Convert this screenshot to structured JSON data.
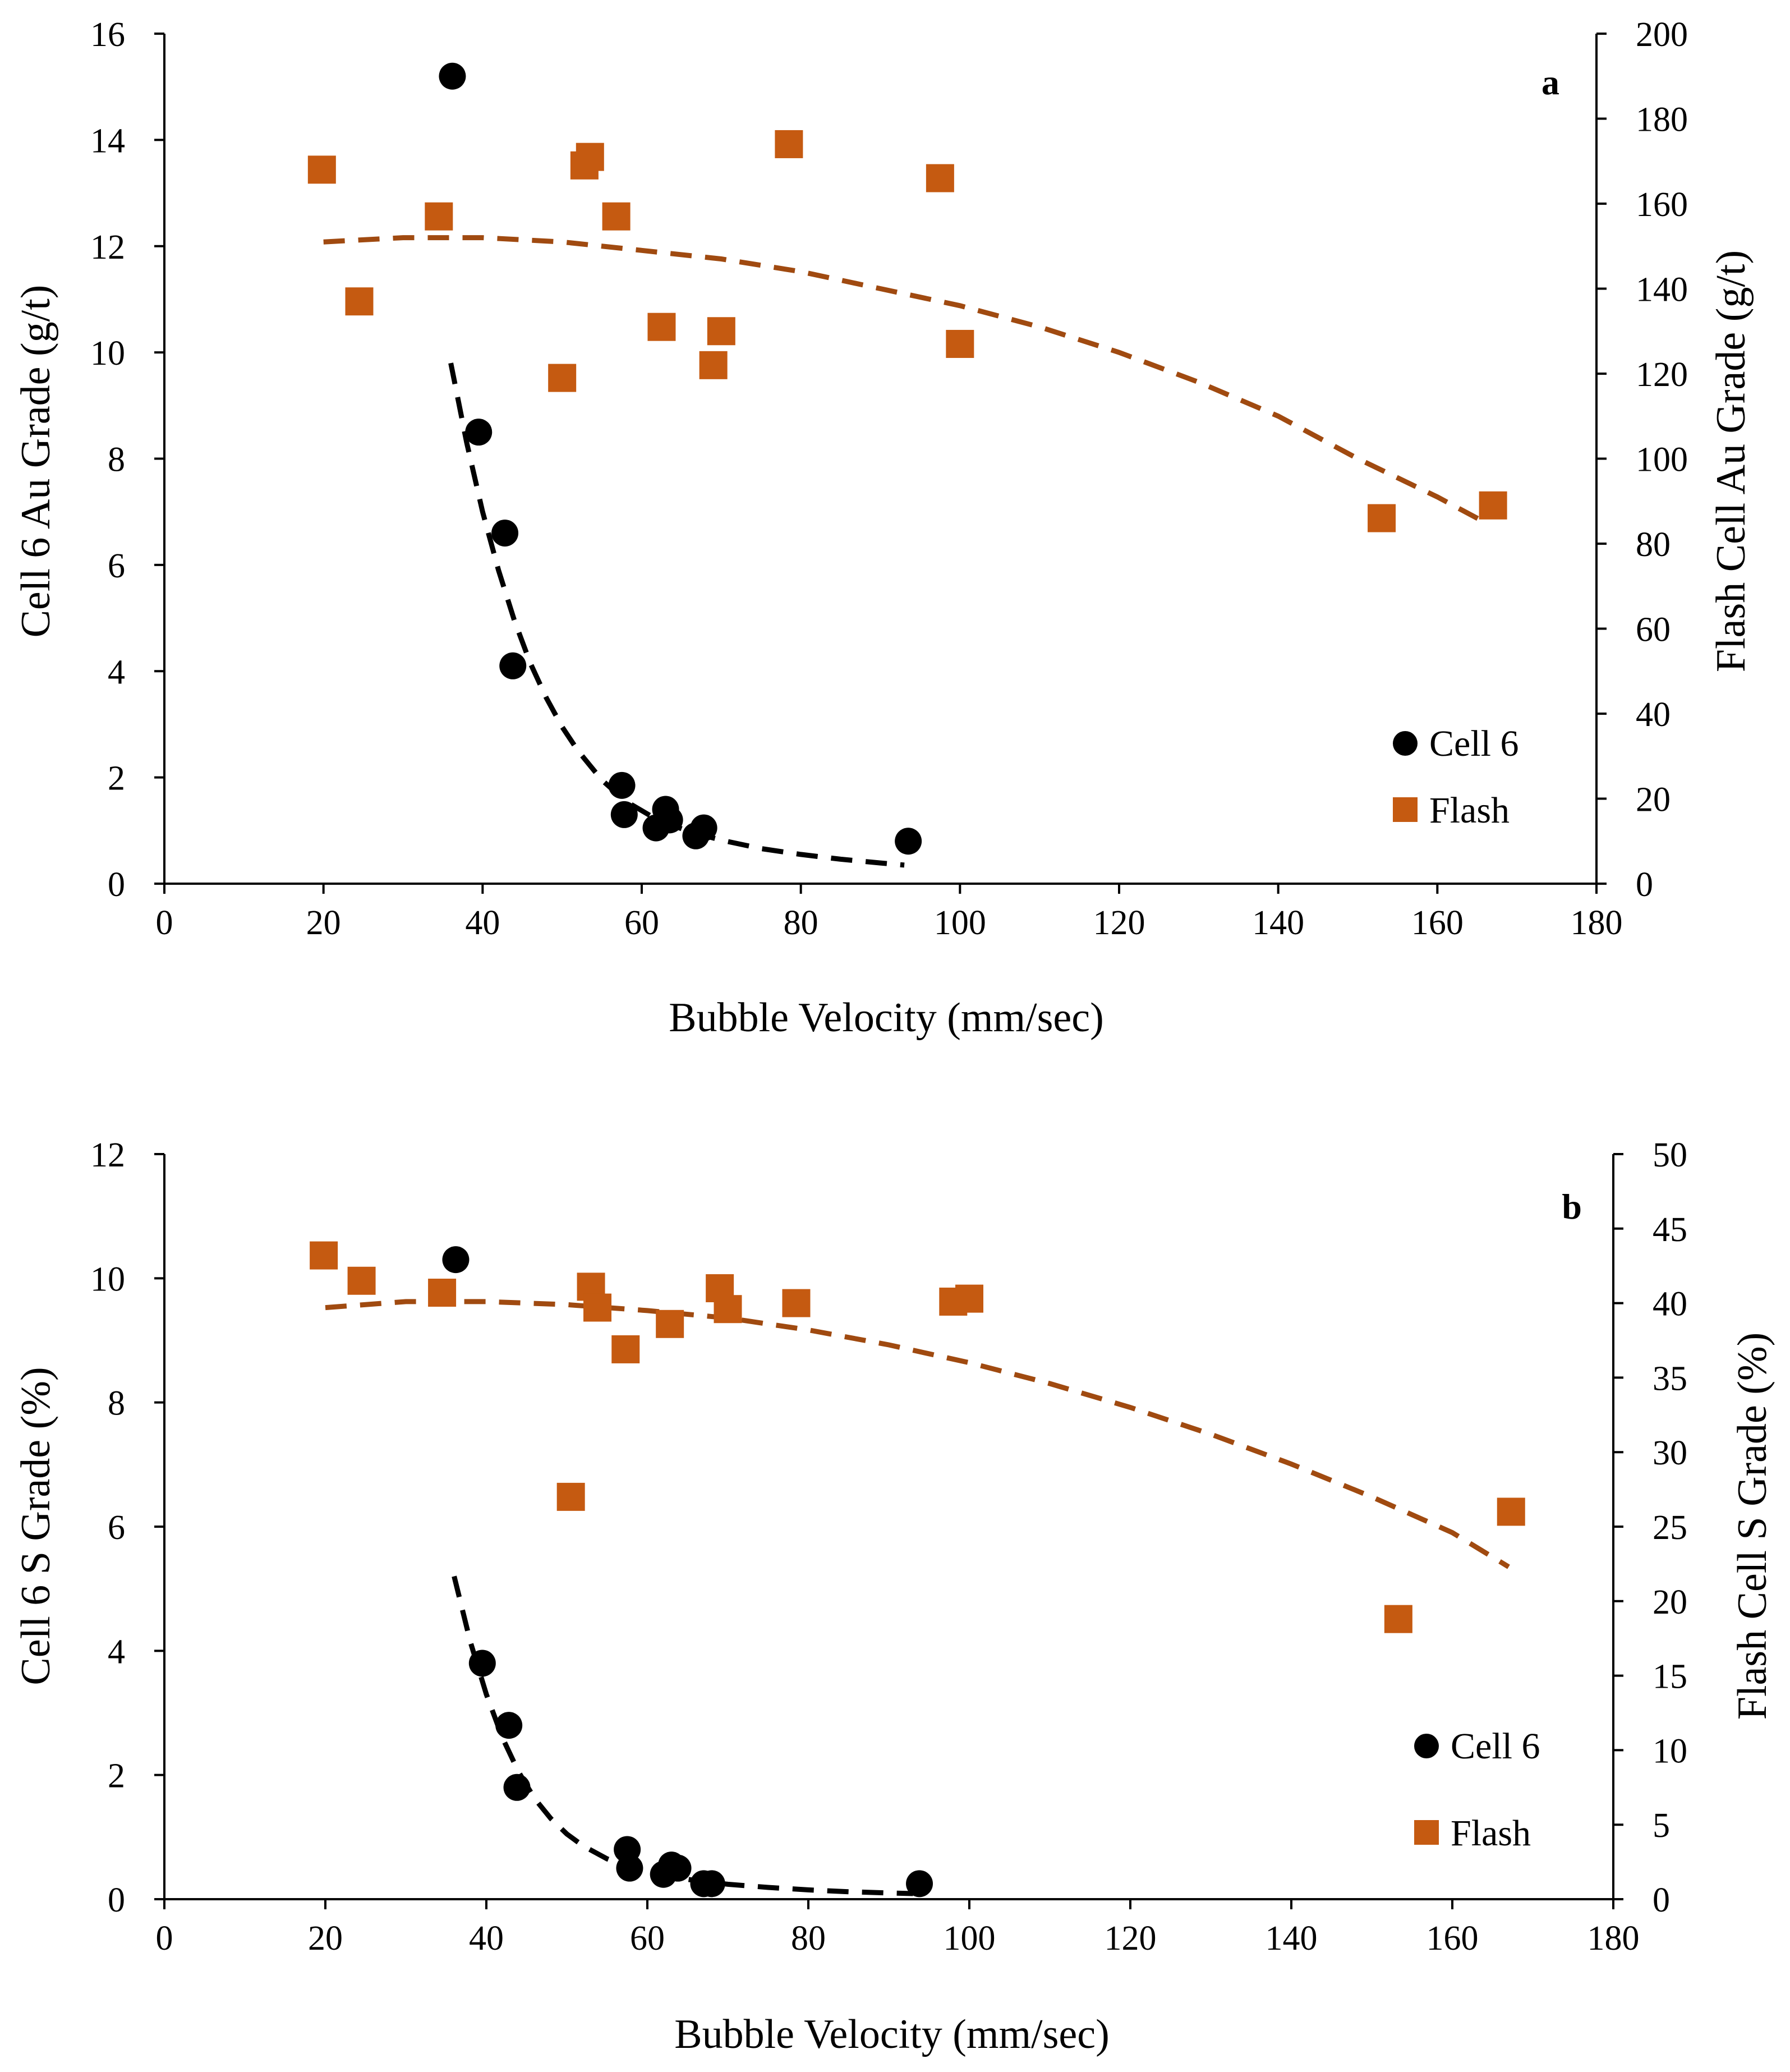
{
  "colors": {
    "cell6": "#000000",
    "flash": "#C55A11",
    "flash_fit": "#A04A10",
    "axis": "#000000"
  },
  "chart_data": [
    {
      "type": "scatter",
      "panel": "a",
      "xlabel": "Bubble Velocity (mm/sec)",
      "ylabel": "Cell 6 Au Grade (g/t)",
      "y2label": "Flash Cell Au Grade (g/t)",
      "xlim": [
        0,
        180
      ],
      "xticks": [
        0,
        20,
        40,
        60,
        80,
        100,
        120,
        140,
        160,
        180
      ],
      "ylim": [
        0,
        16
      ],
      "yticks": [
        0,
        2,
        4,
        6,
        8,
        10,
        12,
        14,
        16
      ],
      "y2lim": [
        0,
        200
      ],
      "y2ticks": [
        0,
        20,
        40,
        60,
        80,
        100,
        120,
        140,
        160,
        180,
        200
      ],
      "legend": [
        "Cell 6",
        "Flash"
      ],
      "legend_position": "bottom-right",
      "series": [
        {
          "name": "Cell 6",
          "axis": "left",
          "marker": "circle",
          "x": [
            36.2,
            39.5,
            42.8,
            43.8,
            57.5,
            57.8,
            61.8,
            63.0,
            63.5,
            66.8,
            67.8,
            93.5
          ],
          "y": [
            15.2,
            8.5,
            6.6,
            4.1,
            1.85,
            1.3,
            1.05,
            1.4,
            1.2,
            0.9,
            1.05,
            0.8
          ]
        },
        {
          "name": "Flash",
          "axis": "right",
          "marker": "square",
          "x": [
            19.8,
            24.5,
            34.5,
            50.0,
            52.8,
            53.5,
            56.8,
            62.5,
            69.0,
            70.0,
            78.5,
            97.5,
            100.0,
            153.0,
            167.0
          ],
          "y": [
            168,
            137,
            157,
            119,
            169,
            171,
            157,
            131,
            122,
            130,
            174,
            166,
            127,
            86,
            89
          ]
        }
      ],
      "fits": [
        {
          "series": "Cell 6",
          "axis": "left",
          "x": [
            36,
            38,
            40,
            42,
            44,
            46,
            48,
            50,
            52,
            55,
            58,
            62,
            66,
            70,
            75,
            80,
            85,
            90,
            93
          ],
          "y": [
            9.8,
            8.3,
            7.0,
            5.9,
            4.95,
            4.15,
            3.5,
            2.95,
            2.5,
            1.95,
            1.55,
            1.2,
            0.98,
            0.82,
            0.66,
            0.55,
            0.46,
            0.39,
            0.35
          ]
        },
        {
          "series": "Flash",
          "axis": "right",
          "x": [
            20,
            30,
            40,
            50,
            60,
            70,
            80,
            90,
            100,
            110,
            120,
            130,
            140,
            150,
            160,
            166
          ],
          "y": [
            151,
            152,
            152,
            151,
            149,
            147,
            144,
            140,
            136,
            131,
            125,
            118,
            110,
            100,
            91,
            85
          ]
        }
      ]
    },
    {
      "type": "scatter",
      "panel": "b",
      "xlabel": "Bubble Velocity (mm/sec)",
      "ylabel": "Cell 6 S Grade (%)",
      "y2label": "Flash Cell S Grade (%)",
      "xlim": [
        0,
        180
      ],
      "xticks": [
        0,
        20,
        40,
        60,
        80,
        100,
        120,
        140,
        160,
        180
      ],
      "ylim": [
        0,
        12
      ],
      "yticks": [
        0,
        2,
        4,
        6,
        8,
        10,
        12
      ],
      "y2lim": [
        0,
        50
      ],
      "y2ticks": [
        0,
        5,
        10,
        15,
        20,
        25,
        30,
        35,
        40,
        45,
        50
      ],
      "legend": [
        "Cell 6",
        "Flash"
      ],
      "legend_position": "bottom-right",
      "series": [
        {
          "name": "Cell 6",
          "axis": "left",
          "marker": "circle",
          "x": [
            36.2,
            39.5,
            42.8,
            43.8,
            57.5,
            57.8,
            62.0,
            63.0,
            63.8,
            67.0,
            68.0,
            93.8
          ],
          "y": [
            10.3,
            3.8,
            2.8,
            1.8,
            0.8,
            0.5,
            0.4,
            0.55,
            0.5,
            0.25,
            0.25,
            0.25
          ]
        },
        {
          "name": "Flash",
          "axis": "right",
          "marker": "square",
          "x": [
            19.8,
            24.5,
            34.5,
            50.5,
            53.0,
            53.8,
            57.3,
            62.8,
            69.0,
            70.0,
            78.5,
            98.0,
            100.0,
            153.3,
            167.3
          ],
          "y": [
            43.2,
            41.5,
            40.7,
            27.0,
            41.1,
            39.7,
            36.9,
            38.6,
            41.0,
            39.6,
            40.0,
            40.1,
            40.3,
            18.8,
            26.0
          ]
        }
      ],
      "fits": [
        {
          "series": "Cell 6",
          "axis": "left",
          "x": [
            36,
            38,
            40,
            42,
            44,
            46,
            48,
            50,
            52,
            55,
            58,
            62,
            66,
            70,
            75,
            80,
            85,
            90,
            93
          ],
          "y": [
            5.2,
            4.15,
            3.3,
            2.6,
            2.05,
            1.62,
            1.3,
            1.05,
            0.86,
            0.65,
            0.5,
            0.38,
            0.3,
            0.24,
            0.19,
            0.15,
            0.12,
            0.1,
            0.09
          ]
        },
        {
          "series": "Flash",
          "axis": "right",
          "x": [
            20,
            30,
            40,
            50,
            60,
            70,
            80,
            90,
            100,
            110,
            120,
            130,
            140,
            150,
            160,
            167
          ],
          "y": [
            39.7,
            40.1,
            40.1,
            39.9,
            39.5,
            39.0,
            38.2,
            37.2,
            36.0,
            34.6,
            33.0,
            31.2,
            29.2,
            27.0,
            24.6,
            22.3
          ]
        }
      ]
    }
  ]
}
